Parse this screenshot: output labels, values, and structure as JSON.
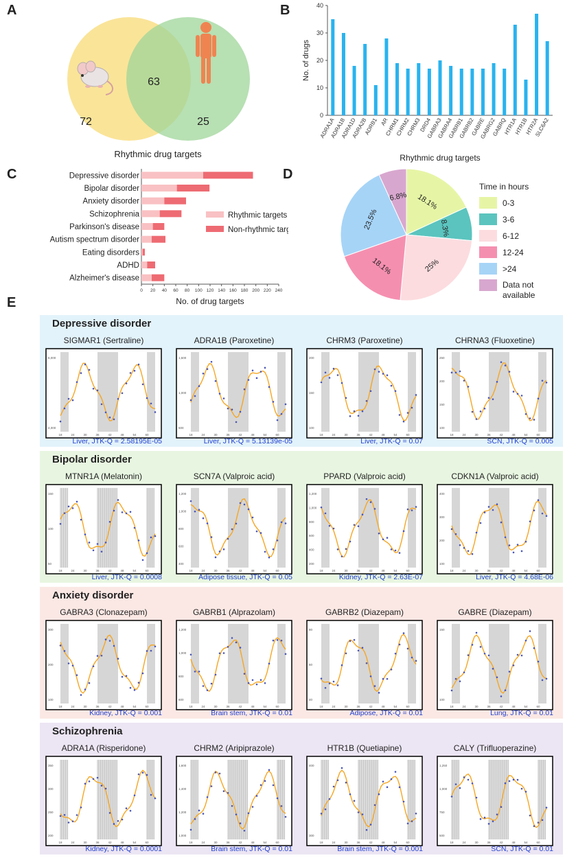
{
  "panels": {
    "a": "A",
    "b": "B",
    "c": "C",
    "d": "D",
    "e": "E"
  },
  "venn": {
    "left_value": "72",
    "overlap_value": "63",
    "right_value": "25",
    "caption": "Rhythmic drug targets",
    "left_color": "#fae18d",
    "right_color": "#9fd69a",
    "left_icon": "mouse-icon",
    "right_icon": "human-figure-icon"
  },
  "chart_b": {
    "type": "bar",
    "title": "",
    "ylabel": "No. of drugs",
    "xlabel": "Rhythmic drug targets",
    "ylim": [
      0,
      40
    ],
    "yticks": [
      "0",
      "10",
      "20",
      "30",
      "40"
    ],
    "color": "#29b3ef",
    "categories": [
      "ADRA1A",
      "ADRA1B",
      "ADRA1D",
      "ADRA2B",
      "ADRB1",
      "AR",
      "CHRM1",
      "CHRM2",
      "CHRM3",
      "DRD4",
      "GABRA3",
      "GABRA4",
      "GABRB1",
      "GABRB2",
      "GABRE",
      "GABRG2",
      "GABRQ",
      "HTR1A",
      "HTR1B",
      "HTR2A",
      "SLC6A2"
    ],
    "values": [
      35,
      30,
      18,
      26,
      11,
      28,
      19,
      17,
      19,
      17,
      20,
      18,
      17,
      17,
      17,
      19,
      17,
      33,
      13,
      37,
      27
    ]
  },
  "chart_c": {
    "type": "bar",
    "orientation": "horizontal",
    "stacked": true,
    "xlabel": "No. of drug targets",
    "xlim": [
      0,
      240
    ],
    "xticks": [
      "0",
      "20",
      "40",
      "60",
      "80",
      "100",
      "120",
      "140",
      "160",
      "180",
      "200",
      "220",
      "240"
    ],
    "categories": [
      "Depressive disorder",
      "Bipolar disorder",
      "Anxiety disorder",
      "Schizophrenia",
      "Parkinson's disease",
      "Autism spectrum disorder",
      "Eating disorders",
      "ADHD",
      "Alzheimer's disease"
    ],
    "series": [
      {
        "name": "Rhythmic targets",
        "color": "#f9c1c3",
        "values": [
          108,
          62,
          40,
          32,
          20,
          18,
          2,
          10,
          18
        ]
      },
      {
        "name": "Non-rhythmic targets",
        "color": "#ee6b73",
        "values": [
          87,
          57,
          38,
          38,
          20,
          24,
          4,
          14,
          22
        ]
      }
    ]
  },
  "chart_d": {
    "type": "pie",
    "legend_title": "Time in hours",
    "slices": [
      {
        "label": "0-3",
        "value": 18.1,
        "text": "18.1%",
        "color": "#e6f5a5"
      },
      {
        "label": "3-6",
        "value": 8.3,
        "text": "8.3%",
        "color": "#5bc4be"
      },
      {
        "label": "6-12",
        "value": 25,
        "text": "25%",
        "color": "#fcdcdf"
      },
      {
        "label": "12-24",
        "value": 18.1,
        "text": "18.1%",
        "color": "#f58fb0"
      },
      {
        "label": ">24",
        "value": 23.5,
        "text": "23.5%",
        "color": "#a6d4f7"
      },
      {
        "label": "Data not available",
        "value": 6.8,
        "text": "6.8%",
        "color": "#d8a7cf"
      }
    ]
  },
  "sections": [
    {
      "title": "Depressive disorder",
      "bg": "#e3f3fb",
      "plots": [
        {
          "title": "SIGMAR1 (Sertraline)",
          "caption": "Liver, JTK-Q = 2.58195E-05",
          "yticks": [
            "6,000",
            "4,000"
          ],
          "shade": "solid"
        },
        {
          "title": "ADRA1B (Paroxetine)",
          "caption": "Liver, JTK-Q = 5.13139e-05",
          "yticks": [
            "1,500",
            "1,000",
            "500"
          ],
          "shade": "solid"
        },
        {
          "title": "CHRM3  (Paroxetine)",
          "caption": "Liver, JTK-Q = 0.07",
          "yticks": [
            "200",
            "150",
            "100"
          ],
          "shade": "solid"
        },
        {
          "title": "CHRNA3  (Fluoxetine)",
          "caption": "SCN, JTK-Q = 0.005",
          "yticks": [
            "250",
            "200",
            "150",
            "100"
          ],
          "shade": "solid"
        }
      ]
    },
    {
      "title": "Bipolar disorder",
      "bg": "#e8f6e1",
      "plots": [
        {
          "title": "MTNR1A  (Melatonin)",
          "caption": "Liver, JTK-Q = 0.0008",
          "yticks": [
            "150",
            "100",
            "50"
          ],
          "shade": "striped"
        },
        {
          "title": "SCN7A  (Valproic acid)",
          "caption": "Adipose tissue, JTK-Q = 0.05",
          "yticks": [
            "1,200",
            "1,000",
            "800",
            "600",
            "400"
          ],
          "shade": "solid"
        },
        {
          "title": "PPARD  (Valproic acid)",
          "caption": "Kidney, JTK-Q = 2.63E-07",
          "yticks": [
            "1,200",
            "1,000",
            "800",
            "600",
            "400",
            "200"
          ],
          "shade": "solid"
        },
        {
          "title": "CDKN1A  (Valproic acid)",
          "caption": "Liver, JTK-Q = 4.68E-06",
          "yticks": [
            "400",
            "300",
            "200",
            "100"
          ],
          "shade": "solid"
        }
      ]
    },
    {
      "title": "Anxiety disorder",
      "bg": "#fbe8e4",
      "plots": [
        {
          "title": "GABRA3 (Clonazepam)",
          "caption": "Kidney, JTK-Q = 0.001",
          "yticks": [
            "300",
            "200",
            "100"
          ],
          "shade": "solid"
        },
        {
          "title": "GABRB1  (Alprazolam)",
          "caption": "Brain stem, JTK-Q = 0.01",
          "yticks": [
            "1,200",
            "1,000",
            "800",
            "600"
          ],
          "shade": "solid"
        },
        {
          "title": "GABRB2  (Diazepam)",
          "caption": "Adipose, JTK-Q = 0.01",
          "yticks": [
            "80",
            "60",
            "40"
          ],
          "shade": "solid"
        },
        {
          "title": "GABRE  (Diazepam)",
          "caption": "Lung, JTK-Q = 0.01",
          "yticks": [
            "150",
            "100"
          ],
          "shade": "solid"
        }
      ]
    },
    {
      "title": "Schizophrenia",
      "bg": "#ece5f3",
      "plots": [
        {
          "title": "ADRA1A (Risperidone)",
          "caption": "Kidney, JTK-Q = 0.0001",
          "yticks": [
            "350",
            "300",
            "250",
            "200"
          ],
          "shade": "striped"
        },
        {
          "title": "CHRM2  (Aripiprazole)",
          "caption": "Brain stem, JTK-Q = 0.01",
          "yticks": [
            "1,600",
            "1,400",
            "1,200",
            "1,000"
          ],
          "shade": "striped"
        },
        {
          "title": "HTR1B  (Quetiapine)",
          "caption": "Brain stem, JTK-Q = 0.001",
          "yticks": [
            "400",
            "300"
          ],
          "shade": "striped"
        },
        {
          "title": "CALY  (Trifluoperazine)",
          "caption": "SCN, JTK-Q = 0.01",
          "yticks": [
            "1,250",
            "1,000",
            "750",
            "500"
          ],
          "shade": "striped"
        }
      ]
    }
  ],
  "hours_ticks": [
    "18",
    "24",
    "30",
    "36",
    "42",
    "48",
    "54",
    "60"
  ],
  "curve_color": "#f5a623",
  "caption_color": "#1f3ecf"
}
